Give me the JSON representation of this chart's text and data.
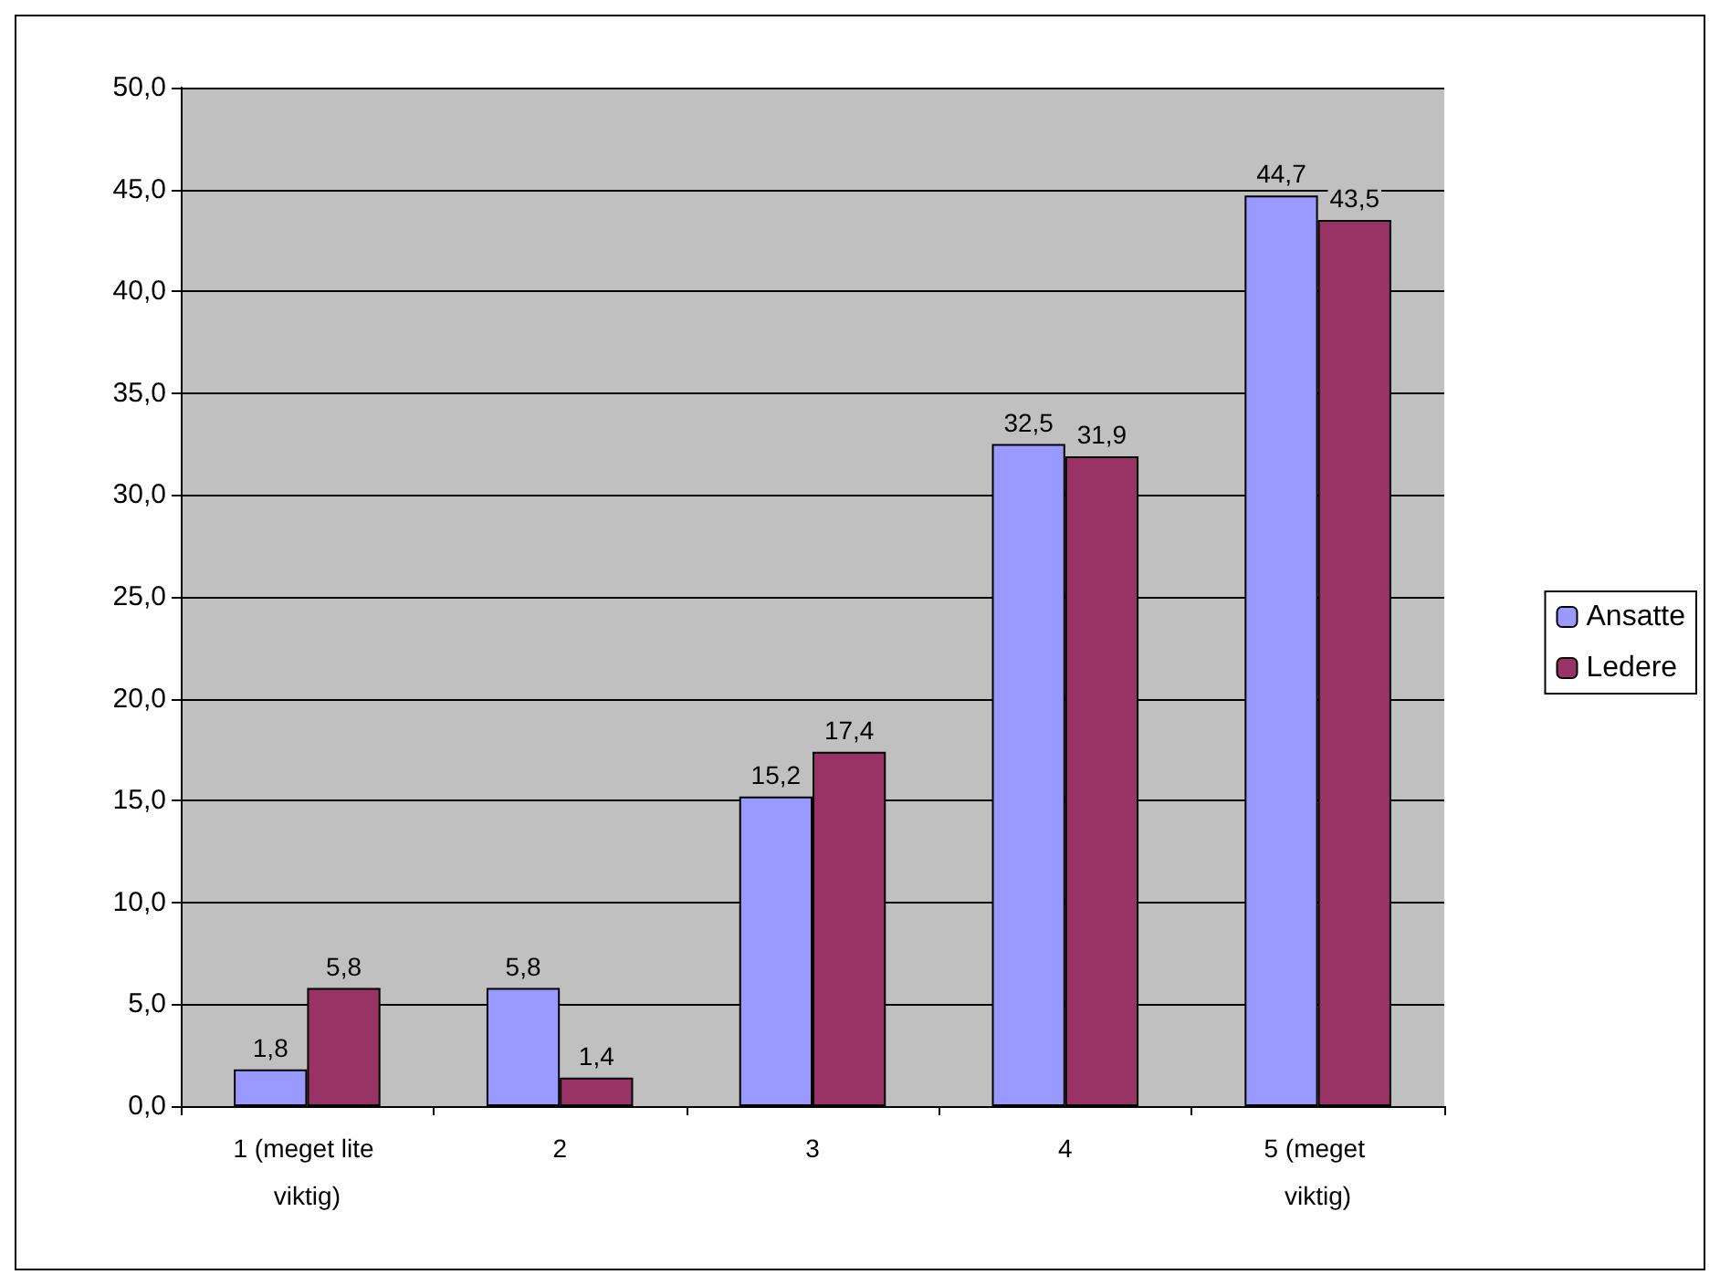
{
  "chart_data": {
    "type": "bar",
    "categories": [
      "1 (meget lite viktig)",
      "2",
      "3",
      "4",
      "5 (meget viktig)"
    ],
    "series": [
      {
        "name": "Ansatte",
        "color": "#9999ff",
        "values": [
          1.8,
          5.8,
          15.2,
          32.5,
          44.7
        ],
        "value_labels": [
          "1,8",
          "5,8",
          "15,2",
          "32,5",
          "44,7"
        ]
      },
      {
        "name": "Ledere",
        "color": "#993366",
        "values": [
          5.8,
          1.4,
          17.4,
          31.9,
          43.5
        ],
        "value_labels": [
          "5,8",
          "1,4",
          "17,4",
          "31,9",
          "43,5"
        ]
      }
    ],
    "ylim": [
      0,
      50
    ],
    "yticks": [
      {
        "value": 0,
        "label": "0,0"
      },
      {
        "value": 5,
        "label": "5,0"
      },
      {
        "value": 10,
        "label": "10,0"
      },
      {
        "value": 15,
        "label": "15,0"
      },
      {
        "value": 20,
        "label": "20,0"
      },
      {
        "value": 25,
        "label": "25,0"
      },
      {
        "value": 30,
        "label": "30,0"
      },
      {
        "value": 35,
        "label": "35,0"
      },
      {
        "value": 40,
        "label": "40,0"
      },
      {
        "value": 45,
        "label": "45,0"
      },
      {
        "value": 50,
        "label": "50,0"
      }
    ],
    "grid": "y",
    "legend": "right"
  }
}
